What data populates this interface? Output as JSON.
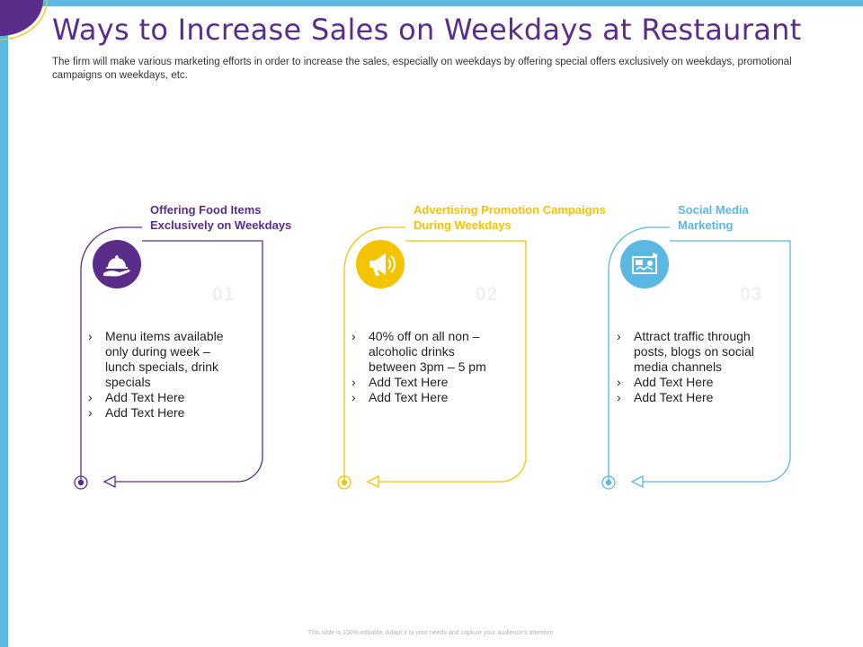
{
  "title": "Ways to Increase Sales on Weekdays at Restaurant",
  "subtitle": "The firm will make various marketing efforts in order to increase the sales, especially on weekdays by offering special offers exclusively on weekdays, promotional campaigns on weekdays, etc.",
  "colors": {
    "purple": "#5b2d8a",
    "yellow": "#f5c400",
    "blue": "#5bb8e3"
  },
  "cards": [
    {
      "heading": "Offering Food Items Exclusively on Weekdays",
      "icon": "cloche-hand-icon",
      "number": "01",
      "bullets": [
        "Menu items available only during week – lunch specials, drink specials",
        "Add Text Here",
        "Add Text Here"
      ]
    },
    {
      "heading": "Advertising Promotion Campaigns During Weekdays",
      "icon": "megaphone-icon",
      "number": "02",
      "bullets": [
        "40% off on all non – alcoholic drinks between 3pm – 5 pm",
        "Add Text Here",
        "Add Text Here"
      ]
    },
    {
      "heading": "Social Media Marketing",
      "icon": "social-media-icon",
      "number": "03",
      "bullets": [
        "Attract traffic through posts, blogs on social media channels",
        "Add Text Here",
        "Add Text Here"
      ]
    }
  ],
  "footer": "This slide is 100% editable. Adapt it to your needs and capture your audience's attention."
}
